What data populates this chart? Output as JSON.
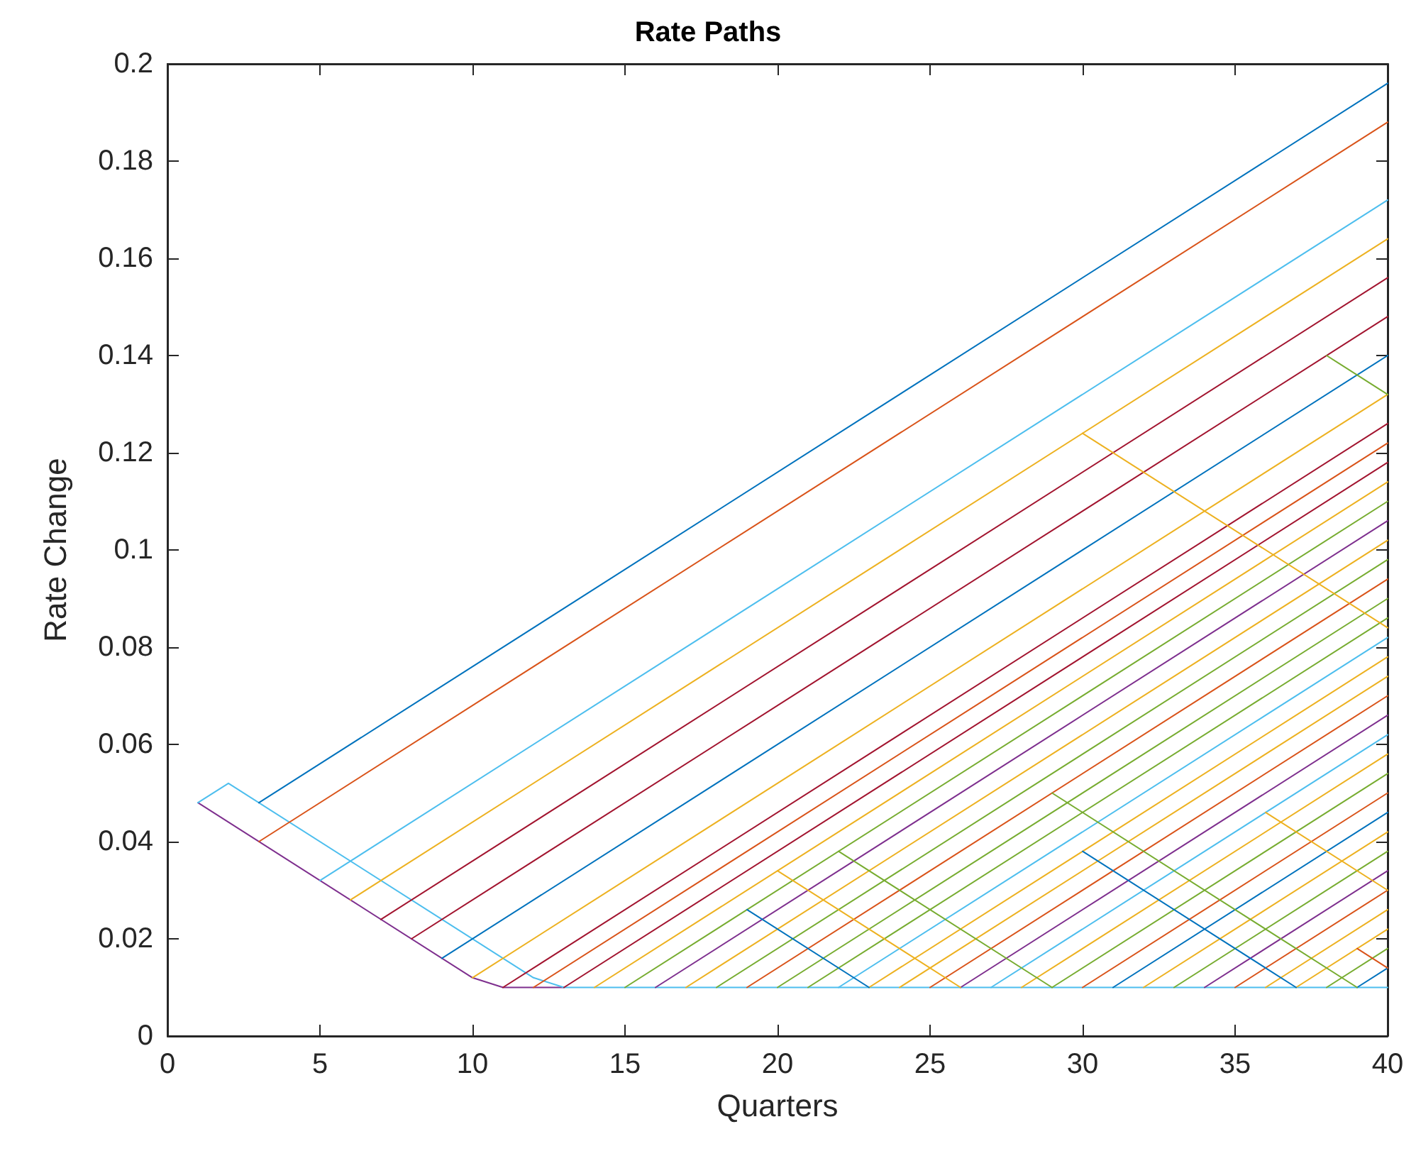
{
  "chart_data": {
    "type": "line",
    "title": "Rate Paths",
    "xlabel": "Quarters",
    "ylabel": "Rate Change",
    "xlim": [
      0,
      40
    ],
    "xticks": [
      0,
      5,
      10,
      15,
      20,
      25,
      30,
      35,
      40
    ],
    "ylim": [
      0,
      0.2
    ],
    "yticks": [
      0,
      0.02,
      0.04,
      0.06,
      0.08,
      0.1,
      0.12,
      0.14,
      0.16,
      0.18,
      0.2
    ],
    "marker": "none",
    "line_style": "solid",
    "series": [
      {
        "color": "#7e2f8e",
        "x": [
          1,
          10,
          11,
          13
        ],
        "values": [
          0.048,
          0.012,
          0.01,
          0.01
        ]
      },
      {
        "color": "#4dbeee",
        "x": [
          1,
          2,
          12,
          13,
          40
        ],
        "values": [
          0.048,
          0.052,
          0.012,
          0.01,
          0.01
        ]
      },
      {
        "color": "#0072bd",
        "x": [
          3,
          40
        ],
        "values": [
          0.048,
          0.196
        ]
      },
      {
        "color": "#d95319",
        "x": [
          3,
          40
        ],
        "values": [
          0.04,
          0.188
        ]
      },
      {
        "color": "#4dbeee",
        "x": [
          5,
          40
        ],
        "values": [
          0.032,
          0.172
        ]
      },
      {
        "color": "#edb120",
        "x": [
          6,
          40
        ],
        "values": [
          0.028,
          0.164
        ]
      },
      {
        "color": "#a2142f",
        "x": [
          7,
          40
        ],
        "values": [
          0.024,
          0.156
        ]
      },
      {
        "color": "#a2142f",
        "x": [
          8,
          40
        ],
        "values": [
          0.02,
          0.148
        ]
      },
      {
        "color": "#0072bd",
        "x": [
          9,
          40
        ],
        "values": [
          0.016,
          0.14
        ]
      },
      {
        "color": "#edb120",
        "x": [
          10,
          40
        ],
        "values": [
          0.012,
          0.132
        ]
      },
      {
        "color": "#a2142f",
        "x": [
          11,
          40
        ],
        "values": [
          0.01,
          0.126
        ]
      },
      {
        "color": "#d95319",
        "x": [
          12,
          40
        ],
        "values": [
          0.01,
          0.122
        ]
      },
      {
        "color": "#a2142f",
        "x": [
          13,
          40
        ],
        "values": [
          0.01,
          0.118
        ]
      },
      {
        "color": "#edb120",
        "x": [
          14,
          40
        ],
        "values": [
          0.01,
          0.114
        ]
      },
      {
        "color": "#77ac30",
        "x": [
          15,
          40
        ],
        "values": [
          0.01,
          0.11
        ]
      },
      {
        "color": "#7e2f8e",
        "x": [
          16,
          40
        ],
        "values": [
          0.01,
          0.106
        ]
      },
      {
        "color": "#edb120",
        "x": [
          17,
          40
        ],
        "values": [
          0.01,
          0.102
        ]
      },
      {
        "color": "#77ac30",
        "x": [
          18,
          40
        ],
        "values": [
          0.01,
          0.098
        ]
      },
      {
        "color": "#d95319",
        "x": [
          19,
          40
        ],
        "values": [
          0.01,
          0.094
        ]
      },
      {
        "color": "#77ac30",
        "x": [
          20,
          40
        ],
        "values": [
          0.01,
          0.09
        ]
      },
      {
        "color": "#77ac30",
        "x": [
          21,
          40
        ],
        "values": [
          0.01,
          0.086
        ]
      },
      {
        "color": "#4dbeee",
        "x": [
          22,
          40
        ],
        "values": [
          0.01,
          0.082
        ]
      },
      {
        "color": "#edb120",
        "x": [
          23,
          40
        ],
        "values": [
          0.01,
          0.078
        ]
      },
      {
        "color": "#edb120",
        "x": [
          24,
          40
        ],
        "values": [
          0.01,
          0.074
        ]
      },
      {
        "color": "#d95319",
        "x": [
          25,
          40
        ],
        "values": [
          0.01,
          0.07
        ]
      },
      {
        "color": "#7e2f8e",
        "x": [
          26,
          40
        ],
        "values": [
          0.01,
          0.066
        ]
      },
      {
        "color": "#4dbeee",
        "x": [
          27,
          40
        ],
        "values": [
          0.01,
          0.062
        ]
      },
      {
        "color": "#edb120",
        "x": [
          28,
          40
        ],
        "values": [
          0.01,
          0.058
        ]
      },
      {
        "color": "#77ac30",
        "x": [
          29,
          40
        ],
        "values": [
          0.01,
          0.054
        ]
      },
      {
        "color": "#d95319",
        "x": [
          30,
          40
        ],
        "values": [
          0.01,
          0.05
        ]
      },
      {
        "color": "#0072bd",
        "x": [
          31,
          40
        ],
        "values": [
          0.01,
          0.046
        ]
      },
      {
        "color": "#edb120",
        "x": [
          32,
          40
        ],
        "values": [
          0.01,
          0.042
        ]
      },
      {
        "color": "#77ac30",
        "x": [
          33,
          40
        ],
        "values": [
          0.01,
          0.038
        ]
      },
      {
        "color": "#7e2f8e",
        "x": [
          34,
          40
        ],
        "values": [
          0.01,
          0.034
        ]
      },
      {
        "color": "#d95319",
        "x": [
          35,
          40
        ],
        "values": [
          0.01,
          0.03
        ]
      },
      {
        "color": "#edb120",
        "x": [
          36,
          40
        ],
        "values": [
          0.01,
          0.026
        ]
      },
      {
        "color": "#edb120",
        "x": [
          37,
          40
        ],
        "values": [
          0.01,
          0.022
        ]
      },
      {
        "color": "#77ac30",
        "x": [
          38,
          40
        ],
        "values": [
          0.01,
          0.018
        ]
      },
      {
        "color": "#0072bd",
        "x": [
          39,
          40
        ],
        "values": [
          0.01,
          0.014
        ]
      },
      {
        "color": "#edb120",
        "x": [
          30,
          40
        ],
        "values": [
          0.124,
          0.084
        ]
      },
      {
        "color": "#77ac30",
        "x": [
          38,
          40
        ],
        "values": [
          0.14,
          0.132
        ]
      },
      {
        "color": "#77ac30",
        "x": [
          29,
          39
        ],
        "values": [
          0.05,
          0.01
        ]
      },
      {
        "color": "#0072bd",
        "x": [
          30,
          37
        ],
        "values": [
          0.038,
          0.01
        ]
      },
      {
        "color": "#edb120",
        "x": [
          36,
          40
        ],
        "values": [
          0.046,
          0.03
        ]
      },
      {
        "color": "#77ac30",
        "x": [
          22,
          29
        ],
        "values": [
          0.038,
          0.01
        ]
      },
      {
        "color": "#edb120",
        "x": [
          20,
          26
        ],
        "values": [
          0.034,
          0.01
        ]
      },
      {
        "color": "#0072bd",
        "x": [
          19,
          23
        ],
        "values": [
          0.026,
          0.01
        ]
      },
      {
        "color": "#d95319",
        "x": [
          39,
          40
        ],
        "values": [
          0.018,
          0.014
        ]
      }
    ]
  }
}
